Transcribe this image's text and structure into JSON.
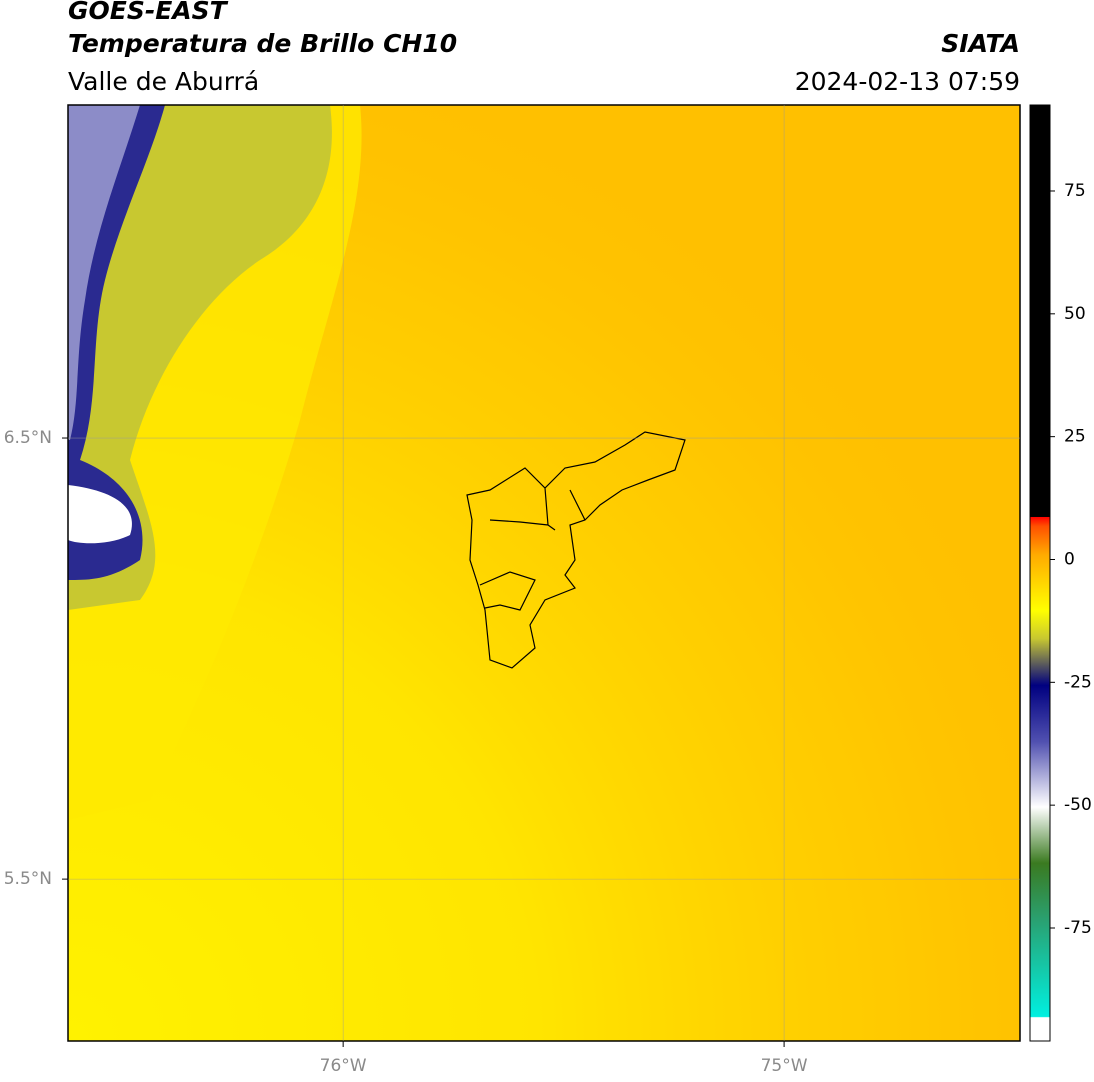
{
  "header": {
    "source": "GOES-EAST",
    "title": "Temperatura de Brillo CH10",
    "region": "Valle de Aburrá",
    "agency": "SIATA",
    "datetime": "2024-02-13 07:59"
  },
  "map": {
    "xlim": [
      -76.624,
      -74.465
    ],
    "ylim": [
      5.133,
      7.255
    ],
    "xticks": [
      {
        "value": -76,
        "label": "76°W"
      },
      {
        "value": -75,
        "label": "75°W"
      }
    ],
    "yticks": [
      {
        "value": 6.5,
        "label": "6.5°N"
      },
      {
        "value": 5.5,
        "label": "5.5°N"
      }
    ],
    "grid": true
  },
  "colorbar": {
    "lim": [
      -98,
      92.5
    ],
    "ticks": [
      -75,
      -50,
      -25,
      0,
      25,
      50,
      75
    ]
  }
}
